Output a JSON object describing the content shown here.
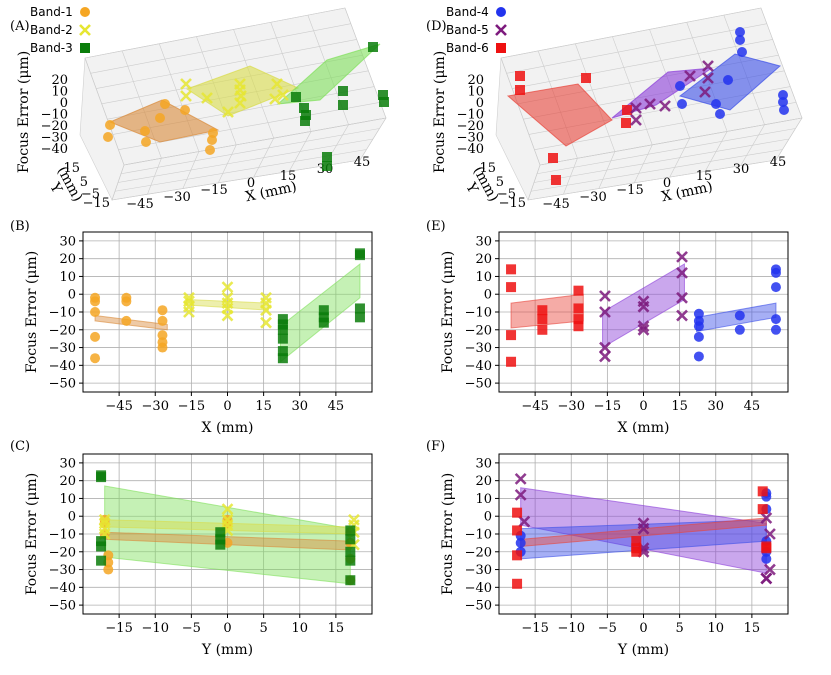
{
  "colors": {
    "band1": "#f5a623",
    "band2": "#e6e632",
    "band3": "#0a7d0a",
    "band4": "#2233ee",
    "band5": "#7d1a7d",
    "band6": "#ee1111",
    "fill1": "#d98a3a",
    "fill2": "#d8dc4a",
    "fill3": "#7fe05a",
    "fill4": "#3a4ee8",
    "fill5": "#8a3cd8",
    "fill6": "#e8443a"
  },
  "chart_data": [
    {
      "panel": "(A)",
      "type": "scatter3d",
      "legend": [
        "Band-1",
        "Band-2",
        "Band-3"
      ],
      "zlabel": "Focus Error (μm)",
      "ylabel": "Y\n(mm)",
      "xlabel": "X (mm)",
      "xticks": [
        "-45",
        "-30",
        "-15",
        "0",
        "15",
        "30",
        "45"
      ],
      "yticks": [
        "-15",
        "-5",
        "5",
        "15"
      ],
      "zticks": [
        "20",
        "10",
        "0",
        "-10",
        "-20",
        "-30",
        "-40"
      ],
      "planes": [
        {
          "band": "Band-1",
          "x": [
            -55,
            -25
          ],
          "y": [
            -15,
            15
          ],
          "z": [
            -8,
            -12
          ]
        },
        {
          "band": "Band-2",
          "x": [
            -20,
            18
          ],
          "y": [
            -15,
            15
          ],
          "z": [
            -3,
            -5
          ]
        },
        {
          "band": "Band-3",
          "x": [
            22,
            55
          ],
          "y": [
            -15,
            15
          ],
          "z": [
            -18,
            18
          ]
        }
      ]
    },
    {
      "panel": "(D)",
      "type": "scatter3d",
      "legend": [
        "Band-4",
        "Band-5",
        "Band-6"
      ],
      "zlabel": "Focus Error (μm)",
      "ylabel": "Y\n(mm)",
      "xlabel": "X (mm)",
      "xticks": [
        "-45",
        "-30",
        "-15",
        "0",
        "15",
        "30",
        "45"
      ],
      "yticks": [
        "-15",
        "-5",
        "5",
        "15"
      ],
      "zticks": [
        "20",
        "10",
        "0",
        "-10",
        "-20",
        "-30",
        "-40"
      ]
    },
    {
      "panel": "(B)",
      "type": "scatter",
      "xlabel": "X (mm)",
      "ylabel": "Focus Error (μm)",
      "xlim": [
        -60,
        60
      ],
      "ylim": [
        -55,
        35
      ],
      "xticks": [
        -45,
        -30,
        -15,
        0,
        15,
        30,
        45
      ],
      "yticks": [
        30,
        20,
        10,
        0,
        -10,
        -20,
        -30,
        -40,
        -50
      ],
      "series": [
        {
          "name": "Band-1",
          "marker": "circle",
          "x": [
            -55,
            -55,
            -55,
            -55,
            -55,
            -42,
            -42,
            -42,
            -27,
            -27,
            -27,
            -27,
            -27
          ],
          "y": [
            -2,
            -4,
            -10,
            -24,
            -36,
            -2,
            -4,
            -15,
            -9,
            -15,
            -23,
            -27,
            -30
          ]
        },
        {
          "name": "Band-2",
          "marker": "x",
          "x": [
            -16,
            -16,
            -16,
            -16,
            0,
            0,
            0,
            0,
            0,
            16,
            16,
            16,
            16
          ],
          "y": [
            -2,
            -4,
            -7,
            -10,
            4,
            -2,
            -5,
            -8,
            -12,
            -2,
            -5,
            -9,
            -16
          ]
        },
        {
          "name": "Band-3",
          "marker": "square",
          "x": [
            23,
            23,
            23,
            23,
            23,
            23,
            40,
            40,
            40,
            55,
            55,
            55,
            55
          ],
          "y": [
            -14,
            -17,
            -20,
            -25,
            -32,
            -36,
            -9,
            -13,
            -16,
            22,
            23,
            -8,
            -13
          ]
        }
      ],
      "bands": [
        {
          "name": "Band-1",
          "x": [
            -55,
            -25
          ],
          "top": [
            -12,
            -17
          ],
          "bottom": [
            -15,
            -20
          ]
        },
        {
          "name": "Band-2",
          "x": [
            -17,
            17
          ],
          "top": [
            -3,
            -5
          ],
          "bottom": [
            -6,
            -9
          ]
        },
        {
          "name": "Band-3",
          "x": [
            22,
            55
          ],
          "top": [
            -18,
            17
          ],
          "bottom": [
            -38,
            -2
          ]
        }
      ]
    },
    {
      "panel": "(E)",
      "type": "scatter",
      "xlabel": "X (mm)",
      "ylabel": "Focus Error (μm)",
      "xlim": [
        -60,
        60
      ],
      "ylim": [
        -55,
        35
      ],
      "xticks": [
        -45,
        -30,
        -15,
        0,
        15,
        30,
        45
      ],
      "yticks": [
        30,
        20,
        10,
        0,
        -10,
        -20,
        -30,
        -40,
        -50
      ],
      "series": [
        {
          "name": "Band-4",
          "marker": "circle",
          "x": [
            23,
            23,
            23,
            23,
            23,
            40,
            40,
            55,
            55,
            55,
            55,
            55
          ],
          "y": [
            -11,
            -15,
            -18,
            -24,
            -35,
            -12,
            -20,
            12,
            14,
            4,
            -14,
            -20
          ]
        },
        {
          "name": "Band-5",
          "marker": "x",
          "x": [
            -16,
            -16,
            -16,
            -16,
            0,
            0,
            0,
            0,
            16,
            16,
            16,
            16
          ],
          "y": [
            -1,
            -10,
            -30,
            -35,
            -4,
            -7,
            -18,
            -20,
            21,
            12,
            -2,
            -12
          ]
        },
        {
          "name": "Band-6",
          "marker": "square",
          "x": [
            -55,
            -55,
            -55,
            -55,
            -42,
            -42,
            -42,
            -27,
            -27,
            -27,
            -27
          ],
          "y": [
            14,
            4,
            -23,
            -38,
            -9,
            -14,
            -20,
            2,
            -8,
            -14,
            -18
          ]
        }
      ],
      "bands": [
        {
          "name": "Band-6",
          "x": [
            -55,
            -25
          ],
          "top": [
            -5,
            0
          ],
          "bottom": [
            -19,
            -15
          ]
        },
        {
          "name": "Band-5",
          "x": [
            -17,
            17
          ],
          "top": [
            -10,
            17
          ],
          "bottom": [
            -30,
            -3
          ]
        },
        {
          "name": "Band-4",
          "x": [
            22,
            55
          ],
          "top": [
            -13,
            -5
          ],
          "bottom": [
            -21,
            -13
          ]
        }
      ]
    },
    {
      "panel": "(C)",
      "type": "scatter",
      "xlabel": "Y (mm)",
      "ylabel": "Focus Error (μm)",
      "xlim": [
        -20,
        20
      ],
      "ylim": [
        -55,
        35
      ],
      "xticks": [
        -15,
        -10,
        -5,
        0,
        5,
        10,
        15
      ],
      "yticks": [
        30,
        20,
        10,
        0,
        -10,
        -20,
        -30,
        -40,
        -50
      ],
      "series": [
        {
          "name": "Band-1",
          "marker": "circle",
          "x": [
            -17,
            -17,
            -17,
            -16.5,
            -16.5,
            -16.5,
            0,
            0,
            0,
            17,
            17,
            17,
            17
          ],
          "y": [
            -2,
            -4,
            -10,
            -22,
            -26,
            -30,
            -2,
            -4,
            -15,
            -9,
            -15,
            -24,
            -36
          ]
        },
        {
          "name": "Band-2",
          "marker": "x",
          "x": [
            -17,
            -17,
            -17,
            -17,
            0,
            0,
            0,
            0,
            17.5,
            17.5,
            17.5,
            17.5
          ],
          "y": [
            -2,
            -4,
            -7,
            -10,
            4,
            -2,
            -5,
            -8,
            -2,
            -5,
            -9,
            -16
          ]
        },
        {
          "name": "Band-3",
          "marker": "square",
          "x": [
            -17.5,
            -17.5,
            -17.5,
            -17.5,
            -17.5,
            -1,
            -1,
            -1,
            17,
            17,
            17,
            17,
            17
          ],
          "y": [
            22,
            23,
            -14,
            -17,
            -25,
            -9,
            -13,
            -16,
            -8,
            -13,
            -20,
            -25,
            -36
          ]
        }
      ],
      "bands": [
        {
          "name": "Band-3",
          "x": [
            -17,
            17
          ],
          "top": [
            17,
            -7
          ],
          "bottom": [
            -23,
            -38
          ]
        },
        {
          "name": "Band-1",
          "x": [
            -17,
            17
          ],
          "top": [
            -9,
            -14
          ],
          "bottom": [
            -13,
            -19
          ]
        },
        {
          "name": "Band-2",
          "x": [
            -17,
            17
          ],
          "top": [
            -2,
            -6
          ],
          "bottom": [
            -6,
            -10
          ]
        }
      ]
    },
    {
      "panel": "(F)",
      "type": "scatter",
      "xlabel": "Y (mm)",
      "ylabel": "Focus Error (μm)",
      "xlim": [
        -20,
        20
      ],
      "ylim": [
        -55,
        35
      ],
      "xticks": [
        -15,
        -10,
        -5,
        0,
        5,
        10,
        15
      ],
      "yticks": [
        30,
        20,
        10,
        0,
        -10,
        -20,
        -30,
        -40,
        -50
      ],
      "series": [
        {
          "name": "Band-4",
          "marker": "circle",
          "x": [
            -17,
            -17,
            -17,
            17,
            17,
            17,
            17,
            17,
            17
          ],
          "y": [
            -11,
            -15,
            -20,
            13,
            11,
            4,
            -14,
            -20,
            -24
          ]
        },
        {
          "name": "Band-5",
          "marker": "x",
          "x": [
            -17,
            -17,
            -16.5,
            0,
            0,
            0,
            0,
            17,
            17.5,
            17.5,
            17,
            17
          ],
          "y": [
            21,
            12,
            -3,
            -4,
            -7,
            -18,
            -20,
            -1,
            -10,
            -30,
            -35,
            -35
          ]
        },
        {
          "name": "Band-6",
          "marker": "square",
          "x": [
            -17.5,
            -17.5,
            -17.5,
            -17.5,
            -1,
            -1,
            -1,
            16.5,
            16.5,
            17,
            17
          ],
          "y": [
            2,
            -8,
            -22,
            -38,
            -14,
            -18,
            -20,
            14,
            4,
            -17,
            -18
          ]
        }
      ],
      "bands": [
        {
          "name": "Band-5",
          "x": [
            -17,
            17
          ],
          "top": [
            16,
            -4
          ],
          "bottom": [
            -5,
            -32
          ]
        },
        {
          "name": "Band-4",
          "x": [
            -17,
            17
          ],
          "top": [
            -7,
            -2
          ],
          "bottom": [
            -24,
            -14
          ]
        },
        {
          "name": "Band-6",
          "x": [
            -17,
            17
          ],
          "top": [
            -13,
            -1
          ],
          "bottom": [
            -17,
            -5
          ]
        }
      ]
    }
  ]
}
